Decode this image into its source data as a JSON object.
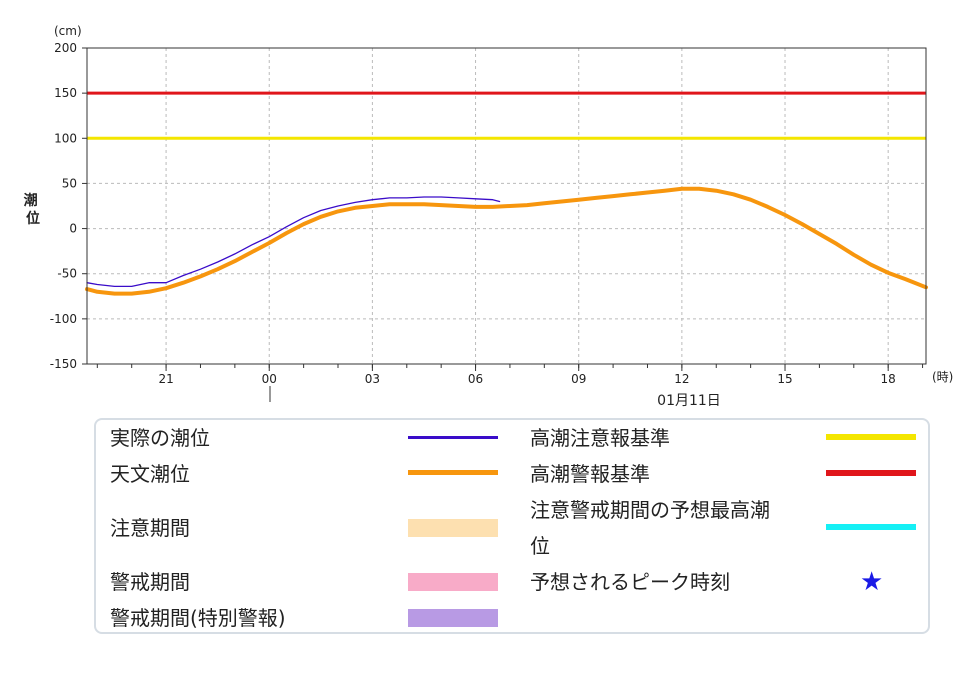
{
  "chart_data": {
    "type": "line",
    "ylabel": "潮位",
    "yunit": "(cm)",
    "xunit": "(時)",
    "ylim": [
      -150,
      200
    ],
    "yticks": [
      200,
      150,
      100,
      50,
      0,
      -50,
      -100,
      -150
    ],
    "xlim": [
      18.7,
      43.1
    ],
    "xticks": [
      {
        "x": 21,
        "label": "21"
      },
      {
        "x": 24,
        "label": "00"
      },
      {
        "x": 27,
        "label": "03"
      },
      {
        "x": 30,
        "label": "06"
      },
      {
        "x": 33,
        "label": "09"
      },
      {
        "x": 36,
        "label": "12"
      },
      {
        "x": 39,
        "label": "15"
      },
      {
        "x": 42,
        "label": "18"
      }
    ],
    "date_label": "01月11日",
    "grid": true,
    "thresholds": [
      {
        "name": "高潮警報基準",
        "value": 150,
        "color": "#e0161b"
      },
      {
        "name": "高潮注意報基準",
        "value": 100,
        "color": "#f4e600"
      }
    ],
    "series": [
      {
        "name": "天文潮位",
        "color": "#f7960e",
        "x": [
          18.7,
          19.0,
          19.5,
          20.0,
          20.5,
          21.0,
          21.5,
          22.0,
          22.5,
          23.0,
          23.5,
          24.0,
          24.5,
          25.0,
          25.5,
          26.0,
          26.5,
          27.0,
          27.5,
          28.0,
          28.5,
          29.0,
          29.5,
          30.0,
          30.5,
          31.0,
          31.5,
          32.0,
          32.5,
          33.0,
          33.5,
          34.0,
          34.5,
          35.0,
          35.5,
          36.0,
          36.5,
          37.0,
          37.5,
          38.0,
          38.5,
          39.0,
          39.5,
          40.0,
          40.5,
          41.0,
          41.5,
          42.0,
          42.5,
          43.1
        ],
        "values": [
          -67,
          -70,
          -72,
          -72,
          -70,
          -66,
          -60,
          -53,
          -45,
          -36,
          -26,
          -16,
          -5,
          5,
          13,
          19,
          23,
          25,
          27,
          27,
          27,
          26,
          25,
          24,
          24,
          25,
          26,
          28,
          30,
          32,
          34,
          36,
          38,
          40,
          42,
          44,
          44,
          42,
          38,
          32,
          24,
          15,
          5,
          -6,
          -17,
          -29,
          -40,
          -49,
          -56,
          -65
        ]
      },
      {
        "name": "実際の潮位",
        "color": "#3a0cc9",
        "x": [
          18.7,
          19.0,
          19.5,
          20.0,
          20.5,
          21.0,
          21.5,
          22.0,
          22.5,
          23.0,
          23.5,
          24.0,
          24.5,
          25.0,
          25.5,
          26.0,
          26.5,
          27.0,
          27.5,
          28.0,
          28.5,
          29.0,
          29.5,
          30.0,
          30.5,
          30.7
        ],
        "values": [
          -60,
          -62,
          -64,
          -64,
          -60,
          -60,
          -52,
          -45,
          -37,
          -28,
          -18,
          -9,
          2,
          12,
          20,
          25,
          29,
          32,
          34,
          34,
          35,
          35,
          34,
          33,
          32,
          30
        ]
      }
    ]
  },
  "legend": {
    "items": [
      {
        "label": "実際の潮位",
        "kind": "line",
        "color": "#3a0cc9"
      },
      {
        "label": "天文潮位",
        "kind": "line",
        "color": "#f7960e"
      },
      {
        "label": "注意期間",
        "kind": "band",
        "color": "#fde0b0"
      },
      {
        "label": "警戒期間",
        "kind": "band",
        "color": "#f8abc8"
      },
      {
        "label": "警戒期間(特別警報)",
        "kind": "band",
        "color": "#b89ae4"
      },
      {
        "label": "高潮注意報基準",
        "kind": "line",
        "color": "#f4e600"
      },
      {
        "label": "高潮警報基準",
        "kind": "line",
        "color": "#e0161b"
      },
      {
        "label_line1": "注意警戒期間の予想最高潮",
        "label_line2": "位",
        "kind": "line",
        "color": "#15f0f5"
      },
      {
        "label": "予想されるピーク時刻",
        "kind": "star",
        "color": "#1a1ae6",
        "icon": "star-icon",
        "glyph": "★"
      }
    ]
  }
}
